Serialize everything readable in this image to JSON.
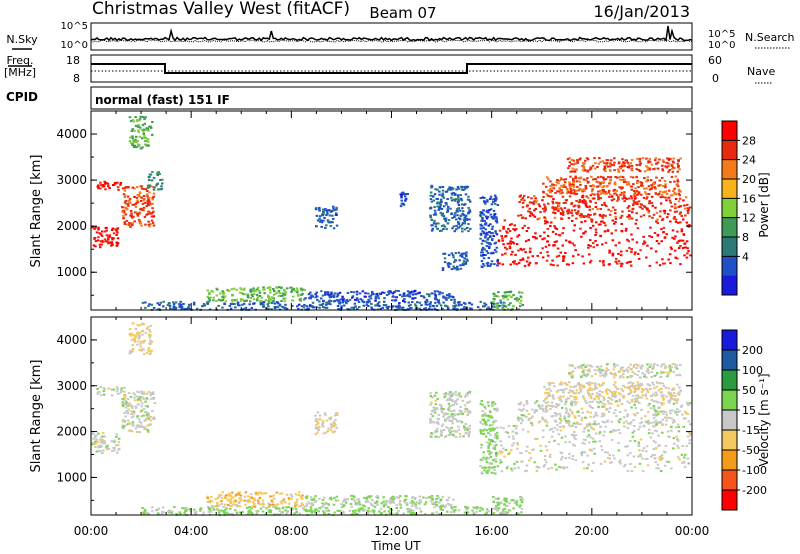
{
  "header": {
    "station": "Christmas Valley West (fitACF)",
    "beam": "Beam 07",
    "date": "16/Jan/2013"
  },
  "status_panel": {
    "nsky_label": "N.Sky",
    "nsky_ticks": [
      "10^5",
      "10^0"
    ],
    "nsearch_label": "N.Search",
    "nsearch_ticks": [
      "10^5",
      "10^0"
    ],
    "freq_label": "Freq.",
    "freq_unit": "[MHz]",
    "freq_ticks": [
      "18",
      "8"
    ],
    "nave_label": "Nave",
    "nave_ticks": [
      "60",
      "0"
    ],
    "cpid_label": "CPID",
    "cpid_value": "normal (fast) 151 IF"
  },
  "time_ticks": [
    "00:00",
    "04:00",
    "08:00",
    "12:00",
    "16:00",
    "20:00",
    "00:00"
  ],
  "time_label": "Time UT",
  "chart_data": [
    {
      "type": "heatmap",
      "name": "power",
      "ylabel": "Slant Range [km]",
      "yticks": [
        "4000",
        "3000",
        "2000",
        "1000"
      ],
      "ylim": [
        180,
        4500
      ],
      "xlim": [
        0,
        24
      ],
      "colorbar_label": "Power [dB]",
      "colorbar_ticks": [
        "28",
        "24",
        "20",
        "16",
        "12",
        "8",
        "4"
      ],
      "colorbar_range": [
        0,
        32
      ],
      "colorbar_colors": [
        "#1a1adc",
        "#1e50c8",
        "#2b7a78",
        "#3f9a55",
        "#7fd03a",
        "#f7b21e",
        "#f57a1a",
        "#e82a10",
        "#ff0000"
      ],
      "regions": [
        {
          "t0": 0.0,
          "t1": 1.1,
          "r0": 1550,
          "r1": 2000,
          "v": 30
        },
        {
          "t0": 0.2,
          "t1": 1.3,
          "r0": 2800,
          "r1": 3000,
          "v": 29
        },
        {
          "t0": 1.2,
          "t1": 2.5,
          "r0": 2000,
          "r1": 2900,
          "v": 26
        },
        {
          "t0": 1.5,
          "t1": 2.4,
          "r0": 3700,
          "r1": 4400,
          "v": 14
        },
        {
          "t0": 2.2,
          "t1": 2.8,
          "r0": 2800,
          "r1": 3200,
          "v": 10
        },
        {
          "t0": 2.0,
          "t1": 16.5,
          "r0": 200,
          "r1": 380,
          "v": 6
        },
        {
          "t0": 4.6,
          "t1": 8.5,
          "r0": 380,
          "r1": 700,
          "v": 15
        },
        {
          "t0": 8.5,
          "t1": 14.5,
          "r0": 380,
          "r1": 620,
          "v": 5
        },
        {
          "t0": 8.9,
          "t1": 9.8,
          "r0": 1950,
          "r1": 2450,
          "v": 6
        },
        {
          "t0": 12.3,
          "t1": 12.6,
          "r0": 2450,
          "r1": 2750,
          "v": 5
        },
        {
          "t0": 13.5,
          "t1": 15.1,
          "r0": 1900,
          "r1": 2900,
          "v": 7
        },
        {
          "t0": 14.0,
          "t1": 15.0,
          "r0": 1050,
          "r1": 1450,
          "v": 6
        },
        {
          "t0": 15.5,
          "t1": 16.2,
          "r0": 1100,
          "r1": 2700,
          "v": 5
        },
        {
          "t0": 16.2,
          "t1": 23.9,
          "r0": 1150,
          "r1": 2150,
          "v": 30
        },
        {
          "t0": 17.0,
          "t1": 23.9,
          "r0": 2150,
          "r1": 2700,
          "v": 27
        },
        {
          "t0": 18.0,
          "t1": 23.5,
          "r0": 2700,
          "r1": 3100,
          "v": 25
        },
        {
          "t0": 19.0,
          "t1": 23.5,
          "r0": 3200,
          "r1": 3500,
          "v": 26
        },
        {
          "t0": 16.0,
          "t1": 17.2,
          "r0": 200,
          "r1": 600,
          "v": 14
        }
      ]
    },
    {
      "type": "heatmap",
      "name": "velocity",
      "ylabel": "Slant Range [km]",
      "yticks": [
        "4000",
        "3000",
        "2000",
        "1000"
      ],
      "ylim": [
        180,
        4500
      ],
      "xlim": [
        0,
        24
      ],
      "colorbar_label": "Velocity [m s⁻¹]",
      "colorbar_ticks": [
        "200",
        "100",
        "50",
        "15",
        "-15",
        "-50",
        "-100",
        "-200"
      ],
      "colorbar_range": [
        -250,
        250
      ],
      "colorbar_colors": [
        "#ff0000",
        "#f5541a",
        "#f59b1a",
        "#f5c860",
        "#c8c8c8",
        "#7ad650",
        "#2b9a40",
        "#1e5aa0",
        "#1a1adc"
      ],
      "regions": [
        {
          "t0": 0.0,
          "t1": 1.1,
          "r0": 1550,
          "r1": 2000,
          "v": 0
        },
        {
          "t0": 0.2,
          "t1": 1.3,
          "r0": 2800,
          "r1": 3000,
          "v": 0
        },
        {
          "t0": 1.2,
          "t1": 2.5,
          "r0": 2000,
          "r1": 2900,
          "v": 0
        },
        {
          "t0": 1.5,
          "t1": 2.4,
          "r0": 3700,
          "r1": 4400,
          "v": -40
        },
        {
          "t0": 2.0,
          "t1": 16.5,
          "r0": 200,
          "r1": 380,
          "v": 40
        },
        {
          "t0": 4.6,
          "t1": 8.5,
          "r0": 380,
          "r1": 700,
          "v": -60
        },
        {
          "t0": 8.5,
          "t1": 14.5,
          "r0": 380,
          "r1": 620,
          "v": 30
        },
        {
          "t0": 8.9,
          "t1": 9.8,
          "r0": 1950,
          "r1": 2450,
          "v": -30
        },
        {
          "t0": 13.5,
          "t1": 15.1,
          "r0": 1900,
          "r1": 2900,
          "v": 10
        },
        {
          "t0": 15.5,
          "t1": 16.2,
          "r0": 1100,
          "r1": 2700,
          "v": 45
        },
        {
          "t0": 16.2,
          "t1": 23.9,
          "r0": 1150,
          "r1": 2150,
          "v": 0
        },
        {
          "t0": 17.0,
          "t1": 23.9,
          "r0": 2150,
          "r1": 2700,
          "v": 0
        },
        {
          "t0": 18.0,
          "t1": 23.5,
          "r0": 2700,
          "r1": 3100,
          "v": -20
        },
        {
          "t0": 19.0,
          "t1": 23.5,
          "r0": 3200,
          "r1": 3500,
          "v": 0
        },
        {
          "t0": 16.0,
          "t1": 17.2,
          "r0": 200,
          "r1": 600,
          "v": 30
        }
      ]
    }
  ]
}
